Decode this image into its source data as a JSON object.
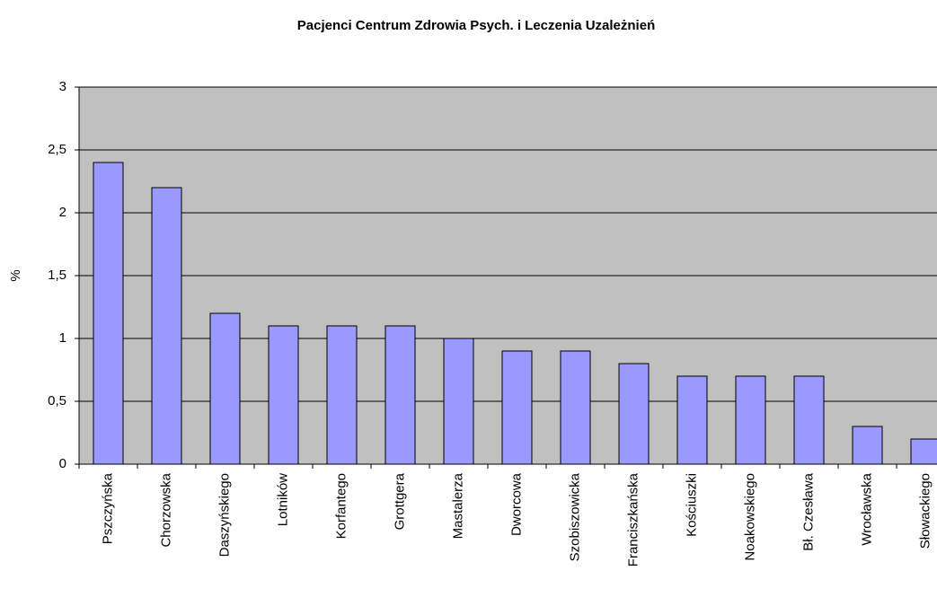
{
  "chart_data": {
    "type": "bar",
    "title": "Pacjenci Centrum Zdrowia Psych. i Leczenia Uzależnień",
    "y_label": "%",
    "categories": [
      "Pszczyńska",
      "Chorzowska",
      "Daszyńskiego",
      "Lotników",
      "Korfantego",
      "Grottgera",
      "Mastalerza",
      "Dworcowa",
      "Szobiszowicka",
      "Franciszkańska",
      "Kościuszki",
      "Noakowskiego",
      "Bł. Czesława",
      "Wrocławska",
      "Słowackiego"
    ],
    "values": [
      2.4,
      2.2,
      1.2,
      1.1,
      1.1,
      1.1,
      1.0,
      0.9,
      0.9,
      0.8,
      0.7,
      0.7,
      0.7,
      0.3,
      0.2
    ],
    "color": "#9999ff",
    "ylim": [
      0,
      3
    ],
    "yticks": [
      0,
      {
        "value": 0.5,
        "label": "0,5"
      },
      1,
      {
        "value": 1.5,
        "label": "1,5"
      },
      2,
      {
        "value": 2.5,
        "label": "2,5"
      },
      3
    ],
    "grid": true
  }
}
